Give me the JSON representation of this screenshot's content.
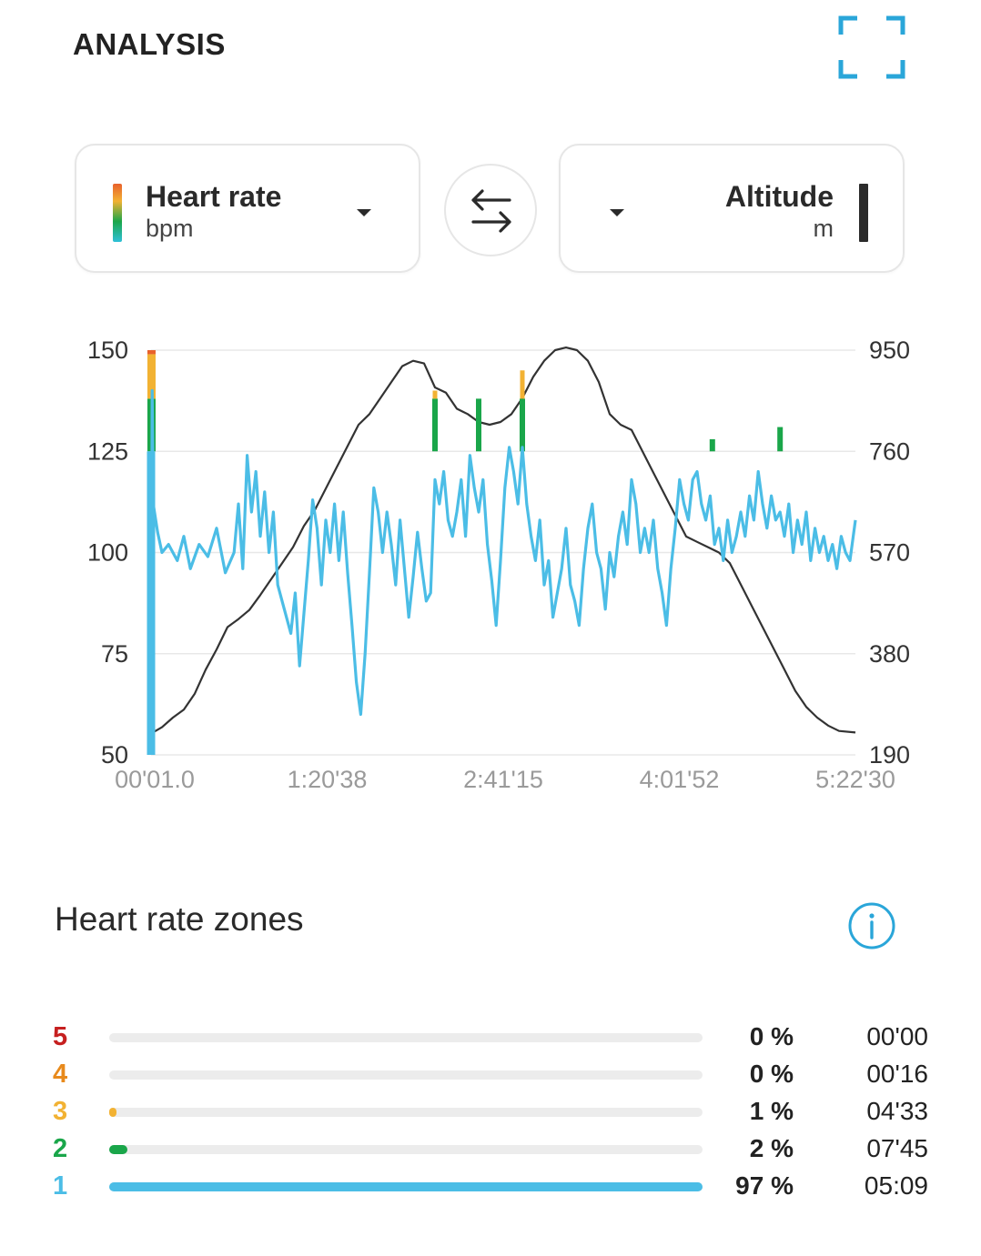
{
  "header": {
    "title": "ANALYSIS",
    "expand_icon": "fullscreen-corners-icon"
  },
  "selectors": {
    "left": {
      "name": "Heart rate",
      "unit": "bpm",
      "swatch": "gradient"
    },
    "right": {
      "name": "Altitude",
      "unit": "m",
      "swatch_color": "#2b2b2b"
    },
    "swap_icon": "swap-arrows-icon"
  },
  "colors": {
    "accent": "#2aa6d9",
    "hr_line": "#4bbde6",
    "altitude_line": "#333333",
    "zone5": "#c62020",
    "zone4": "#e88a1c",
    "zone3": "#f2b233",
    "zone2": "#1aa64a",
    "zone1": "#4bbde6"
  },
  "chart_data": {
    "type": "line",
    "x_tick_labels": [
      "00'01.0",
      "1:20'38",
      "2:41'15",
      "4:01'52",
      "5:22'30"
    ],
    "y_left": {
      "label": "Heart rate",
      "unit": "bpm",
      "ticks": [
        150,
        125,
        100,
        75,
        50
      ],
      "range": [
        50,
        150
      ]
    },
    "y_right": {
      "label": "Altitude",
      "unit": "m",
      "ticks": [
        950,
        760,
        570,
        380,
        190
      ],
      "range": [
        190,
        950
      ]
    },
    "x_range_minutes": [
      0,
      322.5
    ],
    "grid": true,
    "series": [
      {
        "name": "Heart rate",
        "axis": "left",
        "points": [
          [
            0,
            50
          ],
          [
            0.5,
            140
          ],
          [
            1,
            112
          ],
          [
            3,
            105
          ],
          [
            5,
            100
          ],
          [
            8,
            102
          ],
          [
            12,
            98
          ],
          [
            15,
            104
          ],
          [
            18,
            96
          ],
          [
            22,
            102
          ],
          [
            26,
            99
          ],
          [
            30,
            106
          ],
          [
            34,
            95
          ],
          [
            38,
            100
          ],
          [
            40,
            112
          ],
          [
            42,
            96
          ],
          [
            44,
            124
          ],
          [
            46,
            110
          ],
          [
            48,
            120
          ],
          [
            50,
            104
          ],
          [
            52,
            115
          ],
          [
            54,
            100
          ],
          [
            56,
            110
          ],
          [
            58,
            92
          ],
          [
            60,
            88
          ],
          [
            62,
            84
          ],
          [
            64,
            80
          ],
          [
            66,
            90
          ],
          [
            68,
            72
          ],
          [
            70,
            85
          ],
          [
            72,
            98
          ],
          [
            74,
            113
          ],
          [
            76,
            106
          ],
          [
            78,
            92
          ],
          [
            80,
            108
          ],
          [
            82,
            100
          ],
          [
            84,
            112
          ],
          [
            86,
            98
          ],
          [
            88,
            110
          ],
          [
            90,
            95
          ],
          [
            92,
            82
          ],
          [
            94,
            68
          ],
          [
            96,
            60
          ],
          [
            98,
            75
          ],
          [
            100,
            95
          ],
          [
            102,
            116
          ],
          [
            104,
            110
          ],
          [
            106,
            100
          ],
          [
            108,
            110
          ],
          [
            110,
            102
          ],
          [
            112,
            92
          ],
          [
            114,
            108
          ],
          [
            116,
            96
          ],
          [
            118,
            84
          ],
          [
            120,
            94
          ],
          [
            122,
            105
          ],
          [
            124,
            96
          ],
          [
            126,
            88
          ],
          [
            128,
            90
          ],
          [
            130,
            118
          ],
          [
            132,
            112
          ],
          [
            134,
            120
          ],
          [
            136,
            108
          ],
          [
            138,
            104
          ],
          [
            140,
            110
          ],
          [
            142,
            118
          ],
          [
            144,
            104
          ],
          [
            146,
            124
          ],
          [
            148,
            116
          ],
          [
            150,
            110
          ],
          [
            152,
            118
          ],
          [
            154,
            102
          ],
          [
            156,
            93
          ],
          [
            158,
            82
          ],
          [
            160,
            98
          ],
          [
            162,
            116
          ],
          [
            164,
            126
          ],
          [
            166,
            120
          ],
          [
            168,
            112
          ],
          [
            170,
            126
          ],
          [
            172,
            112
          ],
          [
            174,
            104
          ],
          [
            176,
            98
          ],
          [
            178,
            108
          ],
          [
            180,
            92
          ],
          [
            182,
            98
          ],
          [
            184,
            84
          ],
          [
            186,
            90
          ],
          [
            188,
            96
          ],
          [
            190,
            106
          ],
          [
            192,
            92
          ],
          [
            194,
            88
          ],
          [
            196,
            82
          ],
          [
            198,
            96
          ],
          [
            200,
            106
          ],
          [
            202,
            112
          ],
          [
            204,
            100
          ],
          [
            206,
            96
          ],
          [
            208,
            86
          ],
          [
            210,
            100
          ],
          [
            212,
            94
          ],
          [
            214,
            104
          ],
          [
            216,
            110
          ],
          [
            218,
            102
          ],
          [
            220,
            118
          ],
          [
            222,
            112
          ],
          [
            224,
            100
          ],
          [
            226,
            106
          ],
          [
            228,
            100
          ],
          [
            230,
            108
          ],
          [
            232,
            96
          ],
          [
            234,
            90
          ],
          [
            236,
            82
          ],
          [
            238,
            96
          ],
          [
            240,
            106
          ],
          [
            242,
            118
          ],
          [
            244,
            112
          ],
          [
            246,
            108
          ],
          [
            248,
            118
          ],
          [
            250,
            120
          ],
          [
            252,
            112
          ],
          [
            254,
            108
          ],
          [
            256,
            114
          ],
          [
            258,
            102
          ],
          [
            260,
            106
          ],
          [
            262,
            98
          ],
          [
            264,
            108
          ],
          [
            266,
            100
          ],
          [
            268,
            104
          ],
          [
            270,
            110
          ],
          [
            272,
            104
          ],
          [
            274,
            114
          ],
          [
            276,
            108
          ],
          [
            278,
            120
          ],
          [
            280,
            112
          ],
          [
            282,
            106
          ],
          [
            284,
            114
          ],
          [
            286,
            108
          ],
          [
            288,
            110
          ],
          [
            290,
            104
          ],
          [
            292,
            112
          ],
          [
            294,
            100
          ],
          [
            296,
            108
          ],
          [
            298,
            102
          ],
          [
            300,
            110
          ],
          [
            302,
            98
          ],
          [
            304,
            106
          ],
          [
            306,
            100
          ],
          [
            308,
            104
          ],
          [
            310,
            98
          ],
          [
            312,
            102
          ],
          [
            314,
            96
          ],
          [
            316,
            104
          ],
          [
            318,
            100
          ],
          [
            320,
            98
          ],
          [
            322.5,
            108
          ]
        ]
      },
      {
        "name": "Altitude",
        "axis": "right",
        "points": [
          [
            0,
            230
          ],
          [
            5,
            242
          ],
          [
            10,
            260
          ],
          [
            15,
            275
          ],
          [
            20,
            305
          ],
          [
            25,
            350
          ],
          [
            30,
            388
          ],
          [
            35,
            430
          ],
          [
            40,
            445
          ],
          [
            45,
            462
          ],
          [
            50,
            490
          ],
          [
            55,
            520
          ],
          [
            60,
            550
          ],
          [
            65,
            580
          ],
          [
            70,
            620
          ],
          [
            75,
            650
          ],
          [
            80,
            690
          ],
          [
            85,
            730
          ],
          [
            90,
            770
          ],
          [
            95,
            810
          ],
          [
            100,
            830
          ],
          [
            105,
            860
          ],
          [
            110,
            890
          ],
          [
            115,
            920
          ],
          [
            120,
            930
          ],
          [
            125,
            925
          ],
          [
            130,
            880
          ],
          [
            135,
            870
          ],
          [
            140,
            840
          ],
          [
            145,
            830
          ],
          [
            150,
            815
          ],
          [
            155,
            810
          ],
          [
            160,
            815
          ],
          [
            165,
            830
          ],
          [
            170,
            860
          ],
          [
            175,
            900
          ],
          [
            180,
            930
          ],
          [
            185,
            950
          ],
          [
            190,
            955
          ],
          [
            195,
            950
          ],
          [
            200,
            930
          ],
          [
            205,
            890
          ],
          [
            210,
            830
          ],
          [
            215,
            810
          ],
          [
            220,
            800
          ],
          [
            225,
            760
          ],
          [
            230,
            720
          ],
          [
            235,
            680
          ],
          [
            240,
            640
          ],
          [
            245,
            600
          ],
          [
            250,
            590
          ],
          [
            255,
            580
          ],
          [
            260,
            570
          ],
          [
            265,
            550
          ],
          [
            270,
            510
          ],
          [
            275,
            470
          ],
          [
            280,
            430
          ],
          [
            285,
            390
          ],
          [
            290,
            350
          ],
          [
            295,
            310
          ],
          [
            300,
            280
          ],
          [
            305,
            260
          ],
          [
            310,
            245
          ],
          [
            315,
            235
          ],
          [
            322.5,
            232
          ]
        ]
      }
    ],
    "hr_zone_spikes": [
      {
        "x": 0.2,
        "from": 125,
        "to": 150
      },
      {
        "x": 130,
        "from": 125,
        "to": 140
      },
      {
        "x": 150,
        "from": 125,
        "to": 138
      },
      {
        "x": 170,
        "from": 125,
        "to": 145
      },
      {
        "x": 257,
        "from": 125,
        "to": 128
      },
      {
        "x": 288,
        "from": 125,
        "to": 131
      }
    ]
  },
  "zones": {
    "title": "Heart rate zones",
    "info_icon": "info-circle-icon",
    "rows": [
      {
        "num": "5",
        "pct": "0 %",
        "time": "00'00",
        "fraction": 0.0,
        "color": "#c62020"
      },
      {
        "num": "4",
        "pct": "0 %",
        "time": "00'16",
        "fraction": 0.0,
        "color": "#e88a1c"
      },
      {
        "num": "3",
        "pct": "1 %",
        "time": "04'33",
        "fraction": 0.01,
        "color": "#f2b233"
      },
      {
        "num": "2",
        "pct": "2 %",
        "time": "07'45",
        "fraction": 0.03,
        "color": "#1aa64a"
      },
      {
        "num": "1",
        "pct": "97 %",
        "time": "05:09",
        "fraction": 1.0,
        "color": "#4bbde6"
      }
    ]
  }
}
